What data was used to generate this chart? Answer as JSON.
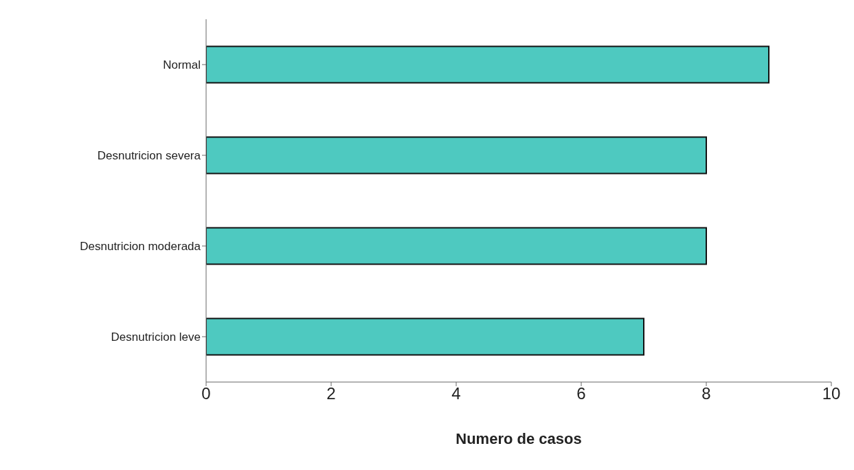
{
  "chart_data": {
    "type": "bar",
    "orientation": "horizontal",
    "xlabel": "Numero de casos",
    "categories": [
      "Normal",
      "Desnutricion severa",
      "Desnutricion moderada",
      "Desnutricion leve"
    ],
    "values": [
      9,
      8,
      8,
      7
    ],
    "color": "#4ec9c0",
    "xlim": [
      0,
      10
    ],
    "xticks": [
      0,
      2,
      4,
      6,
      8,
      10
    ],
    "grid": false,
    "legend": false
  }
}
